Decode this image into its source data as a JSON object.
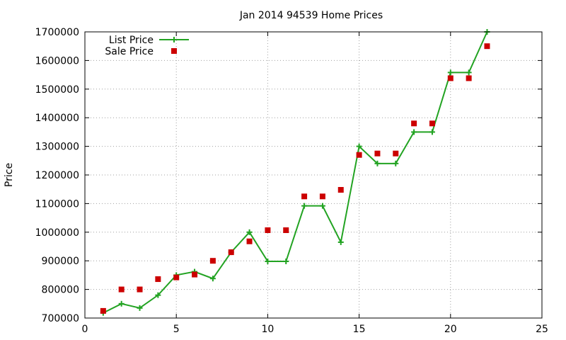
{
  "chart_data": {
    "type": "line",
    "title": "Jan 2014 94539 Home Prices",
    "xlabel": "",
    "ylabel": "Price",
    "xlim": [
      0,
      25
    ],
    "ylim": [
      700000,
      1700000
    ],
    "x_ticks": [
      0,
      5,
      10,
      15,
      20,
      25
    ],
    "y_ticks": [
      700000,
      800000,
      900000,
      1000000,
      1100000,
      1200000,
      1300000,
      1400000,
      1500000,
      1600000,
      1700000
    ],
    "grid": true,
    "legend_position": "top-left",
    "series": [
      {
        "name": "List Price",
        "style": "line-with-plus-markers",
        "color": "#22a322",
        "points": [
          [
            1,
            718000
          ],
          [
            2,
            750000
          ],
          [
            3,
            735000
          ],
          [
            4,
            780000
          ],
          [
            5,
            850000
          ],
          [
            6,
            862000
          ],
          [
            7,
            838000
          ],
          [
            8,
            930000
          ],
          [
            9,
            1000000
          ],
          [
            10,
            898000
          ],
          [
            11,
            898000
          ],
          [
            12,
            1092000
          ],
          [
            13,
            1092000
          ],
          [
            14,
            965000
          ],
          [
            15,
            1300000
          ],
          [
            16,
            1240000
          ],
          [
            17,
            1240000
          ],
          [
            18,
            1350000
          ],
          [
            19,
            1350000
          ],
          [
            20,
            1558000
          ],
          [
            21,
            1558000
          ],
          [
            22,
            1700000
          ]
        ]
      },
      {
        "name": "Sale Price",
        "style": "square-markers",
        "color": "#cc0000",
        "points": [
          [
            1,
            725000
          ],
          [
            2,
            800000
          ],
          [
            3,
            800000
          ],
          [
            4,
            836000
          ],
          [
            5,
            842000
          ],
          [
            6,
            852000
          ],
          [
            7,
            900000
          ],
          [
            8,
            930000
          ],
          [
            9,
            968000
          ],
          [
            10,
            1007000
          ],
          [
            11,
            1007000
          ],
          [
            12,
            1125000
          ],
          [
            13,
            1125000
          ],
          [
            14,
            1148000
          ],
          [
            15,
            1270000
          ],
          [
            16,
            1275000
          ],
          [
            17,
            1275000
          ],
          [
            18,
            1380000
          ],
          [
            19,
            1380000
          ],
          [
            20,
            1538000
          ],
          [
            21,
            1538000
          ],
          [
            22,
            1650000
          ]
        ]
      }
    ]
  }
}
